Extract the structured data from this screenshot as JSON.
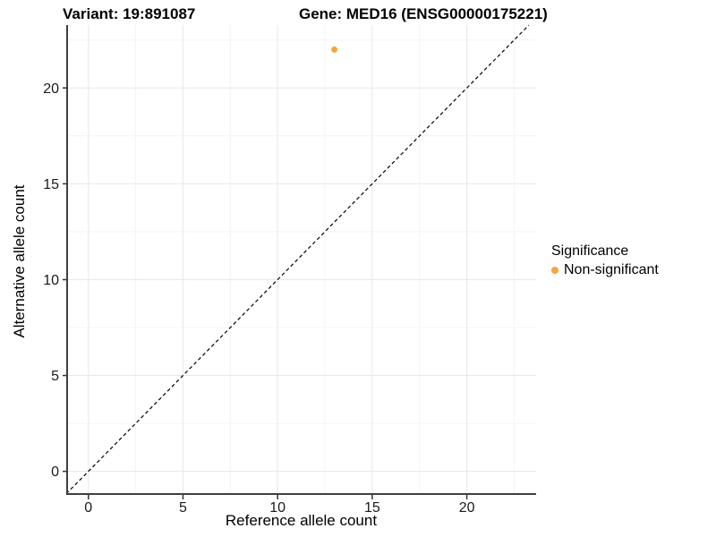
{
  "titles": {
    "variant": "Variant: 19:891087",
    "gene": "Gene: MED16 (ENSG00000175221)"
  },
  "chart_data": {
    "type": "scatter",
    "points": [
      {
        "x": 13,
        "y": 22,
        "group": "Non-significant"
      }
    ],
    "xlabel": "Reference allele count",
    "ylabel": "Alternative allele count",
    "x_ticks": [
      0,
      5,
      10,
      15,
      20
    ],
    "y_ticks": [
      0,
      5,
      10,
      15,
      20
    ],
    "x_minor_ticks": [
      2.5,
      7.5,
      12.5,
      17.5,
      22.5
    ],
    "y_minor_ticks": [
      2.5,
      7.5,
      12.5,
      17.5,
      22.5
    ],
    "xlim": [
      -1.17,
      23.66
    ],
    "ylim": [
      -1.23,
      23.28
    ],
    "reference_line": {
      "slope": 1,
      "intercept": 0,
      "style": "dashed"
    },
    "grid": true,
    "legend": {
      "title": "Significance",
      "position": "right",
      "items": [
        {
          "label": "Non-significant",
          "color": "#FAA43C"
        }
      ]
    }
  },
  "colors": {
    "point": "#FAA43C",
    "axis_line": "#3F3F3F",
    "tick": "#333333",
    "tick_label": "#1A1A1A",
    "grid_major": "#E7E7E7",
    "grid_minor": "#F4F4F4",
    "dashed_line": "#000000"
  }
}
